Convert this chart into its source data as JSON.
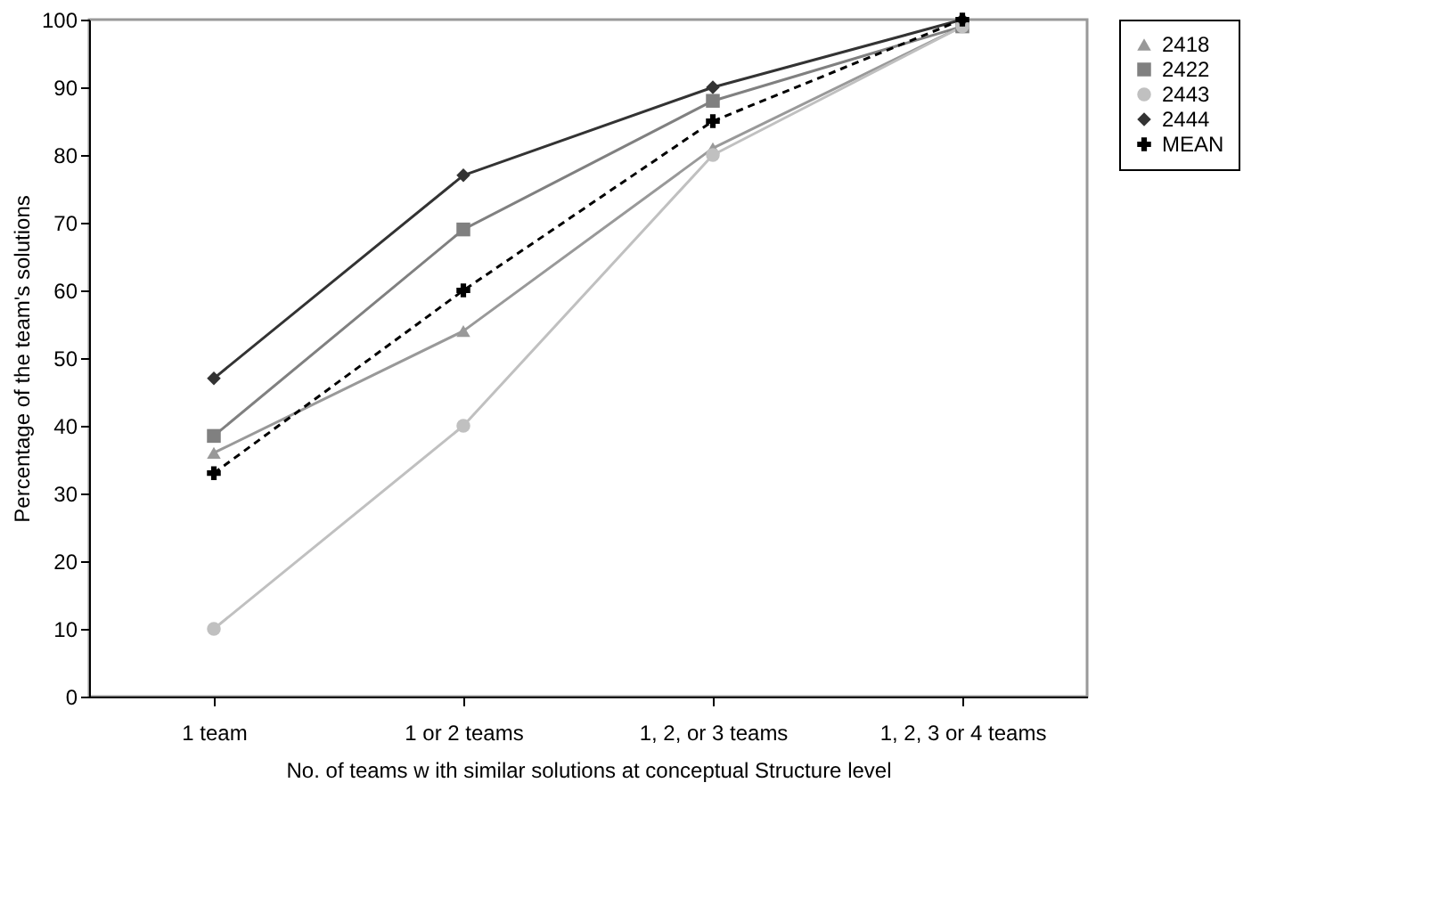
{
  "chart_data": {
    "type": "line",
    "xlabel": "No. of teams w ith similar solutions at conceptual Structure level",
    "ylabel": "Percentage of the team's solutions",
    "categories": [
      "1 team",
      "1 or 2 teams",
      "1, 2, or 3 teams",
      "1, 2, 3 or 4 teams"
    ],
    "ylim": [
      0,
      100
    ],
    "yticks": [
      0,
      10,
      20,
      30,
      40,
      50,
      60,
      70,
      80,
      90,
      100
    ],
    "grid": false,
    "legend": "right",
    "series": [
      {
        "name": "2418",
        "color": "#999999",
        "marker": "triangle",
        "line_style": "solid",
        "values": [
          36,
          54,
          81,
          99
        ]
      },
      {
        "name": "2422",
        "color": "#808080",
        "marker": "square",
        "line_style": "solid",
        "values": [
          38.5,
          69,
          88,
          99
        ]
      },
      {
        "name": "2443",
        "color": "#c0c0c0",
        "marker": "circle",
        "line_style": "solid",
        "values": [
          10,
          40,
          80,
          99
        ]
      },
      {
        "name": "2444",
        "color": "#333333",
        "marker": "diamond",
        "line_style": "solid",
        "values": [
          47,
          77,
          90,
          100
        ]
      },
      {
        "name": "MEAN",
        "color": "#000000",
        "marker": "cross",
        "line_style": "dashed",
        "values": [
          33,
          60,
          85,
          100
        ]
      }
    ]
  }
}
